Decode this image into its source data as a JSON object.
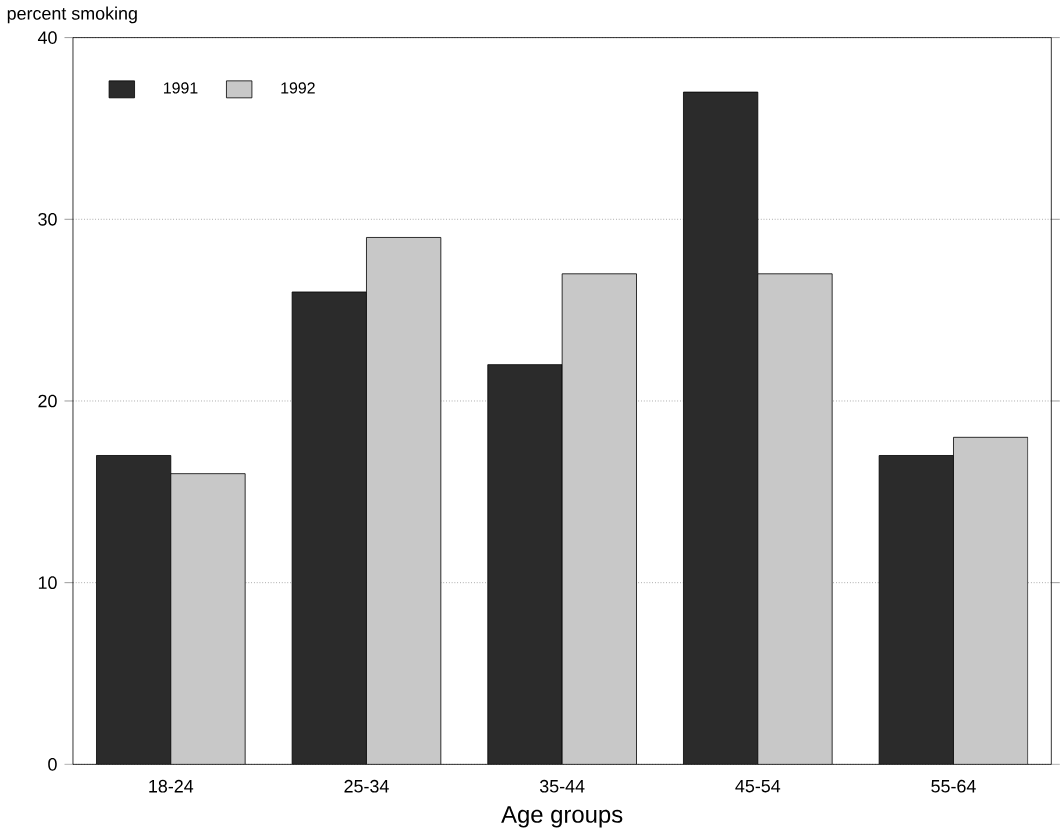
{
  "chart_data": {
    "type": "bar",
    "ylabel": "percent smoking",
    "xlabel": "Age groups",
    "categories": [
      "18-24",
      "25-34",
      "35-44",
      "45-54",
      "55-64"
    ],
    "series": [
      {
        "name": "1991",
        "color": "#2b2b2b",
        "values": [
          17,
          26,
          22,
          37,
          17
        ]
      },
      {
        "name": "1992",
        "color": "#c8c8c8",
        "values": [
          16,
          29,
          27,
          27,
          18
        ]
      }
    ],
    "ylim": [
      0,
      40
    ],
    "yticks": [
      0,
      10,
      20,
      30,
      40
    ],
    "grid": "y",
    "legend": "top left"
  }
}
